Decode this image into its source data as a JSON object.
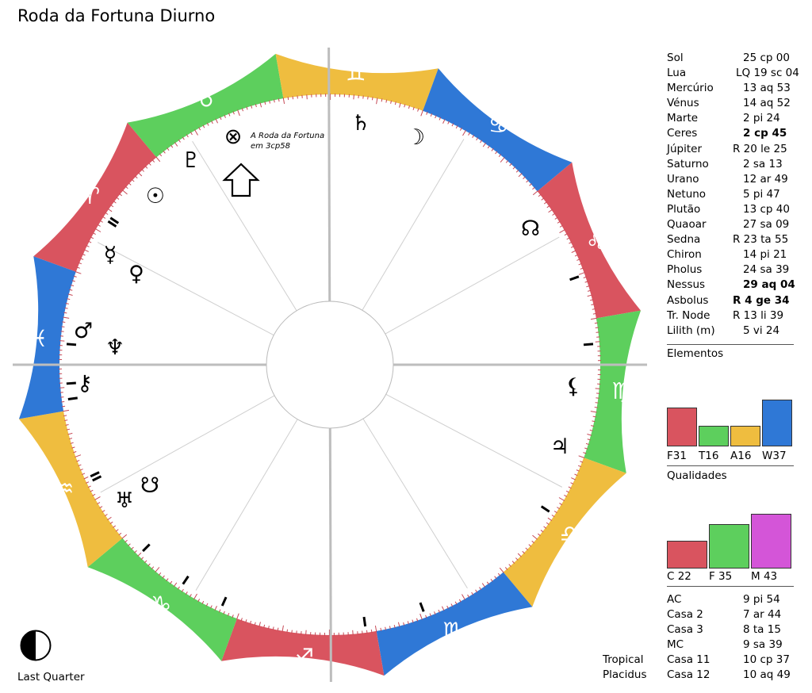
{
  "title": "Roda da Fortuna Diurno",
  "fortune_note": [
    "A Roda da Fortuna",
    "em 3cp58"
  ],
  "planets": [
    {
      "name": "Sol",
      "value": "25 cp 00",
      "bold": false
    },
    {
      "name": "Lua",
      "value": "LQ 19 sc 04",
      "bold": false
    },
    {
      "name": "Mercúrio",
      "value": "13 aq 53",
      "bold": false
    },
    {
      "name": "Vénus",
      "value": "14 aq 52",
      "bold": false
    },
    {
      "name": "Marte",
      "value": "2 pi 24",
      "bold": false
    },
    {
      "name": "Ceres",
      "value": "2 cp 45",
      "bold": true
    },
    {
      "name": "Júpiter",
      "value": "R 20 le 25",
      "bold": false
    },
    {
      "name": "Saturno",
      "value": "2 sa 13",
      "bold": false
    },
    {
      "name": "Urano",
      "value": "12 ar 49",
      "bold": false
    },
    {
      "name": "Netuno",
      "value": "5 pi 47",
      "bold": false
    },
    {
      "name": "Plutão",
      "value": "13 cp 40",
      "bold": false
    },
    {
      "name": "Quaoar",
      "value": "27 sa 09",
      "bold": false
    },
    {
      "name": "Sedna",
      "value": "R 23 ta 55",
      "bold": false
    },
    {
      "name": "Chiron",
      "value": "14 pi 21",
      "bold": false
    },
    {
      "name": "Pholus",
      "value": "24 sa 39",
      "bold": false
    },
    {
      "name": "Nessus",
      "value": "29 aq 04",
      "bold": true
    },
    {
      "name": "Asbolus",
      "value": "R 4 ge 34",
      "bold": true
    },
    {
      "name": "Tr. Node",
      "value": "R 13 li 39",
      "bold": false
    },
    {
      "name": "Lilith (m)",
      "value": "5 vi 24",
      "bold": false
    }
  ],
  "elements": {
    "heading": "Elementos",
    "bars": [
      {
        "label": "F31",
        "value": 31,
        "color": "#d9545f"
      },
      {
        "label": "T16",
        "value": 16,
        "color": "#5dcf5d"
      },
      {
        "label": "A16",
        "value": 16,
        "color": "#efbd3f"
      },
      {
        "label": "W37",
        "value": 37,
        "color": "#2f78d6"
      }
    ]
  },
  "qualities": {
    "heading": "Qualidades",
    "bars": [
      {
        "label": "C 22",
        "value": 22,
        "color": "#d9545f"
      },
      {
        "label": "F 35",
        "value": 35,
        "color": "#5dcf5d"
      },
      {
        "label": "M 43",
        "value": 43,
        "color": "#d455d8"
      }
    ]
  },
  "houses": [
    {
      "name": "AC",
      "value": "9 pi 54"
    },
    {
      "name": "Casa 2",
      "value": "7 ar 44"
    },
    {
      "name": "Casa 3",
      "value": "8 ta 15"
    },
    {
      "name": "MC",
      "value": "9 sa 39"
    },
    {
      "name": "Casa 11",
      "value": "10 cp 37"
    },
    {
      "name": "Casa 12",
      "value": "10 aq 49"
    }
  ],
  "system_labels": [
    "Tropical",
    "Placidus"
  ],
  "phase_label": "Last Quarter",
  "colors": {
    "fire": "#d9545f",
    "earth": "#5dcf5d",
    "air": "#efbd3f",
    "water": "#2f78d6"
  },
  "wheel": {
    "ascendant_longitude": 339.9,
    "signs": [
      {
        "name": "Aries",
        "glyph": "♈",
        "element": "fire"
      },
      {
        "name": "Taurus",
        "glyph": "♉",
        "element": "earth"
      },
      {
        "name": "Gemini",
        "glyph": "♊",
        "element": "air"
      },
      {
        "name": "Cancer",
        "glyph": "♋",
        "element": "water"
      },
      {
        "name": "Leo",
        "glyph": "♌",
        "element": "fire"
      },
      {
        "name": "Virgo",
        "glyph": "♍",
        "element": "earth"
      },
      {
        "name": "Libra",
        "glyph": "♎",
        "element": "air"
      },
      {
        "name": "Scorpio",
        "glyph": "♏",
        "element": "water"
      },
      {
        "name": "Sagittarius",
        "glyph": "♐",
        "element": "fire"
      },
      {
        "name": "Capricorn",
        "glyph": "♑",
        "element": "earth"
      },
      {
        "name": "Aquarius",
        "glyph": "♒",
        "element": "air"
      },
      {
        "name": "Pisces",
        "glyph": "♓",
        "element": "water"
      }
    ],
    "house_cusps": [
      339.9,
      7.7,
      38.3,
      69.7,
      100.6,
      130.8,
      159.9,
      187.7,
      218.3,
      249.7,
      280.6,
      310.8
    ],
    "points": [
      {
        "name": "sun",
        "glyph": "☉",
        "longitude": 295.0
      },
      {
        "name": "moon",
        "glyph": "☽",
        "longitude": 229.1
      },
      {
        "name": "mercury",
        "glyph": "☿",
        "longitude": 313.9
      },
      {
        "name": "venus",
        "glyph": "♀",
        "longitude": 314.9
      },
      {
        "name": "mars",
        "glyph": "♂",
        "longitude": 332.4
      },
      {
        "name": "jupiter",
        "glyph": "♃",
        "longitude": 140.4
      },
      {
        "name": "saturn",
        "glyph": "♄",
        "longitude": 242.2
      },
      {
        "name": "uranus",
        "glyph": "♅",
        "longitude": 12.8
      },
      {
        "name": "neptune",
        "glyph": "♆",
        "longitude": 335.8
      },
      {
        "name": "pluto",
        "glyph": "♇",
        "longitude": 283.7
      },
      {
        "name": "chiron",
        "glyph": "⚷",
        "longitude": 344.4
      },
      {
        "name": "north-node",
        "glyph": "☊",
        "longitude": 193.7
      },
      {
        "name": "south-node",
        "glyph": "☋",
        "longitude": 13.7
      },
      {
        "name": "lilith",
        "glyph": "⚸",
        "longitude": 155.4
      },
      {
        "name": "part-of-fortune",
        "glyph": "⊗",
        "longitude": 273.97
      }
    ]
  }
}
